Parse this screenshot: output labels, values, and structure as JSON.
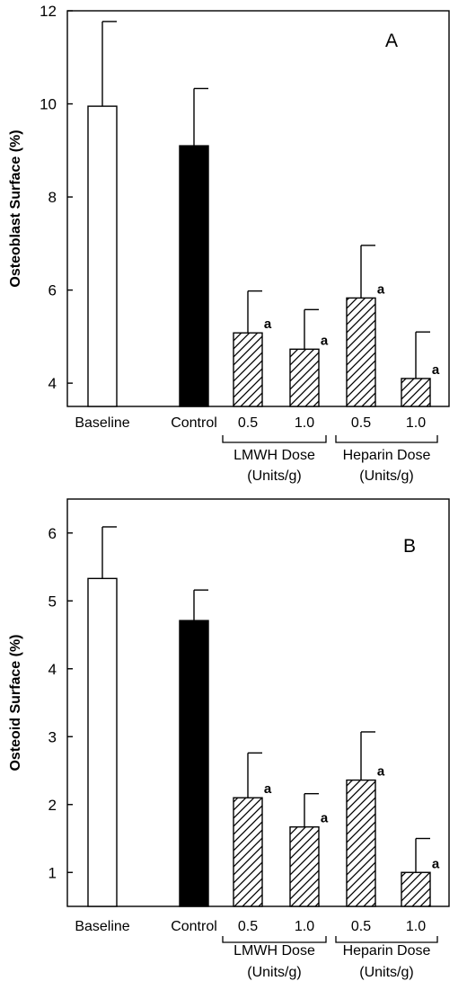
{
  "chart_data": [
    {
      "type": "bar",
      "panel_label": "A",
      "ylabel": "Osteoblast Surface (%)",
      "ylim": [
        3.5,
        12
      ],
      "yticks": [
        4,
        6,
        8,
        10,
        12
      ],
      "categories": [
        "Baseline",
        "Control",
        "0.5",
        "1.0",
        "0.5",
        "1.0"
      ],
      "values": [
        9.95,
        9.1,
        5.08,
        4.73,
        5.83,
        4.1
      ],
      "errors": [
        1.82,
        1.23,
        0.9,
        0.85,
        1.13,
        1.0
      ],
      "fills": [
        "open",
        "solid",
        "hatched",
        "hatched",
        "hatched",
        "hatched"
      ],
      "significance": [
        "",
        "",
        "a",
        "a",
        "a",
        "a"
      ],
      "groups": [
        {
          "label": "LMWH Dose",
          "sublabel": "(Units/g)",
          "members": [
            2,
            3
          ]
        },
        {
          "label": "Heparin Dose",
          "sublabel": "(Units/g)",
          "members": [
            4,
            5
          ]
        }
      ]
    },
    {
      "type": "bar",
      "panel_label": "B",
      "ylabel": "Osteoid Surface (%)",
      "ylim": [
        0.5,
        6.5
      ],
      "yticks": [
        1,
        2,
        3,
        4,
        5,
        6
      ],
      "categories": [
        "Baseline",
        "Control",
        "0.5",
        "1.0",
        "0.5",
        "1.0"
      ],
      "values": [
        5.33,
        4.71,
        2.1,
        1.67,
        2.36,
        1.0
      ],
      "errors": [
        0.76,
        0.45,
        0.66,
        0.49,
        0.71,
        0.5
      ],
      "fills": [
        "open",
        "solid",
        "hatched",
        "hatched",
        "hatched",
        "hatched"
      ],
      "significance": [
        "",
        "",
        "a",
        "a",
        "a",
        "a"
      ],
      "groups": [
        {
          "label": "LMWH Dose",
          "sublabel": "(Units/g)",
          "members": [
            2,
            3
          ]
        },
        {
          "label": "Heparin Dose",
          "sublabel": "(Units/g)",
          "members": [
            4,
            5
          ]
        }
      ]
    }
  ]
}
